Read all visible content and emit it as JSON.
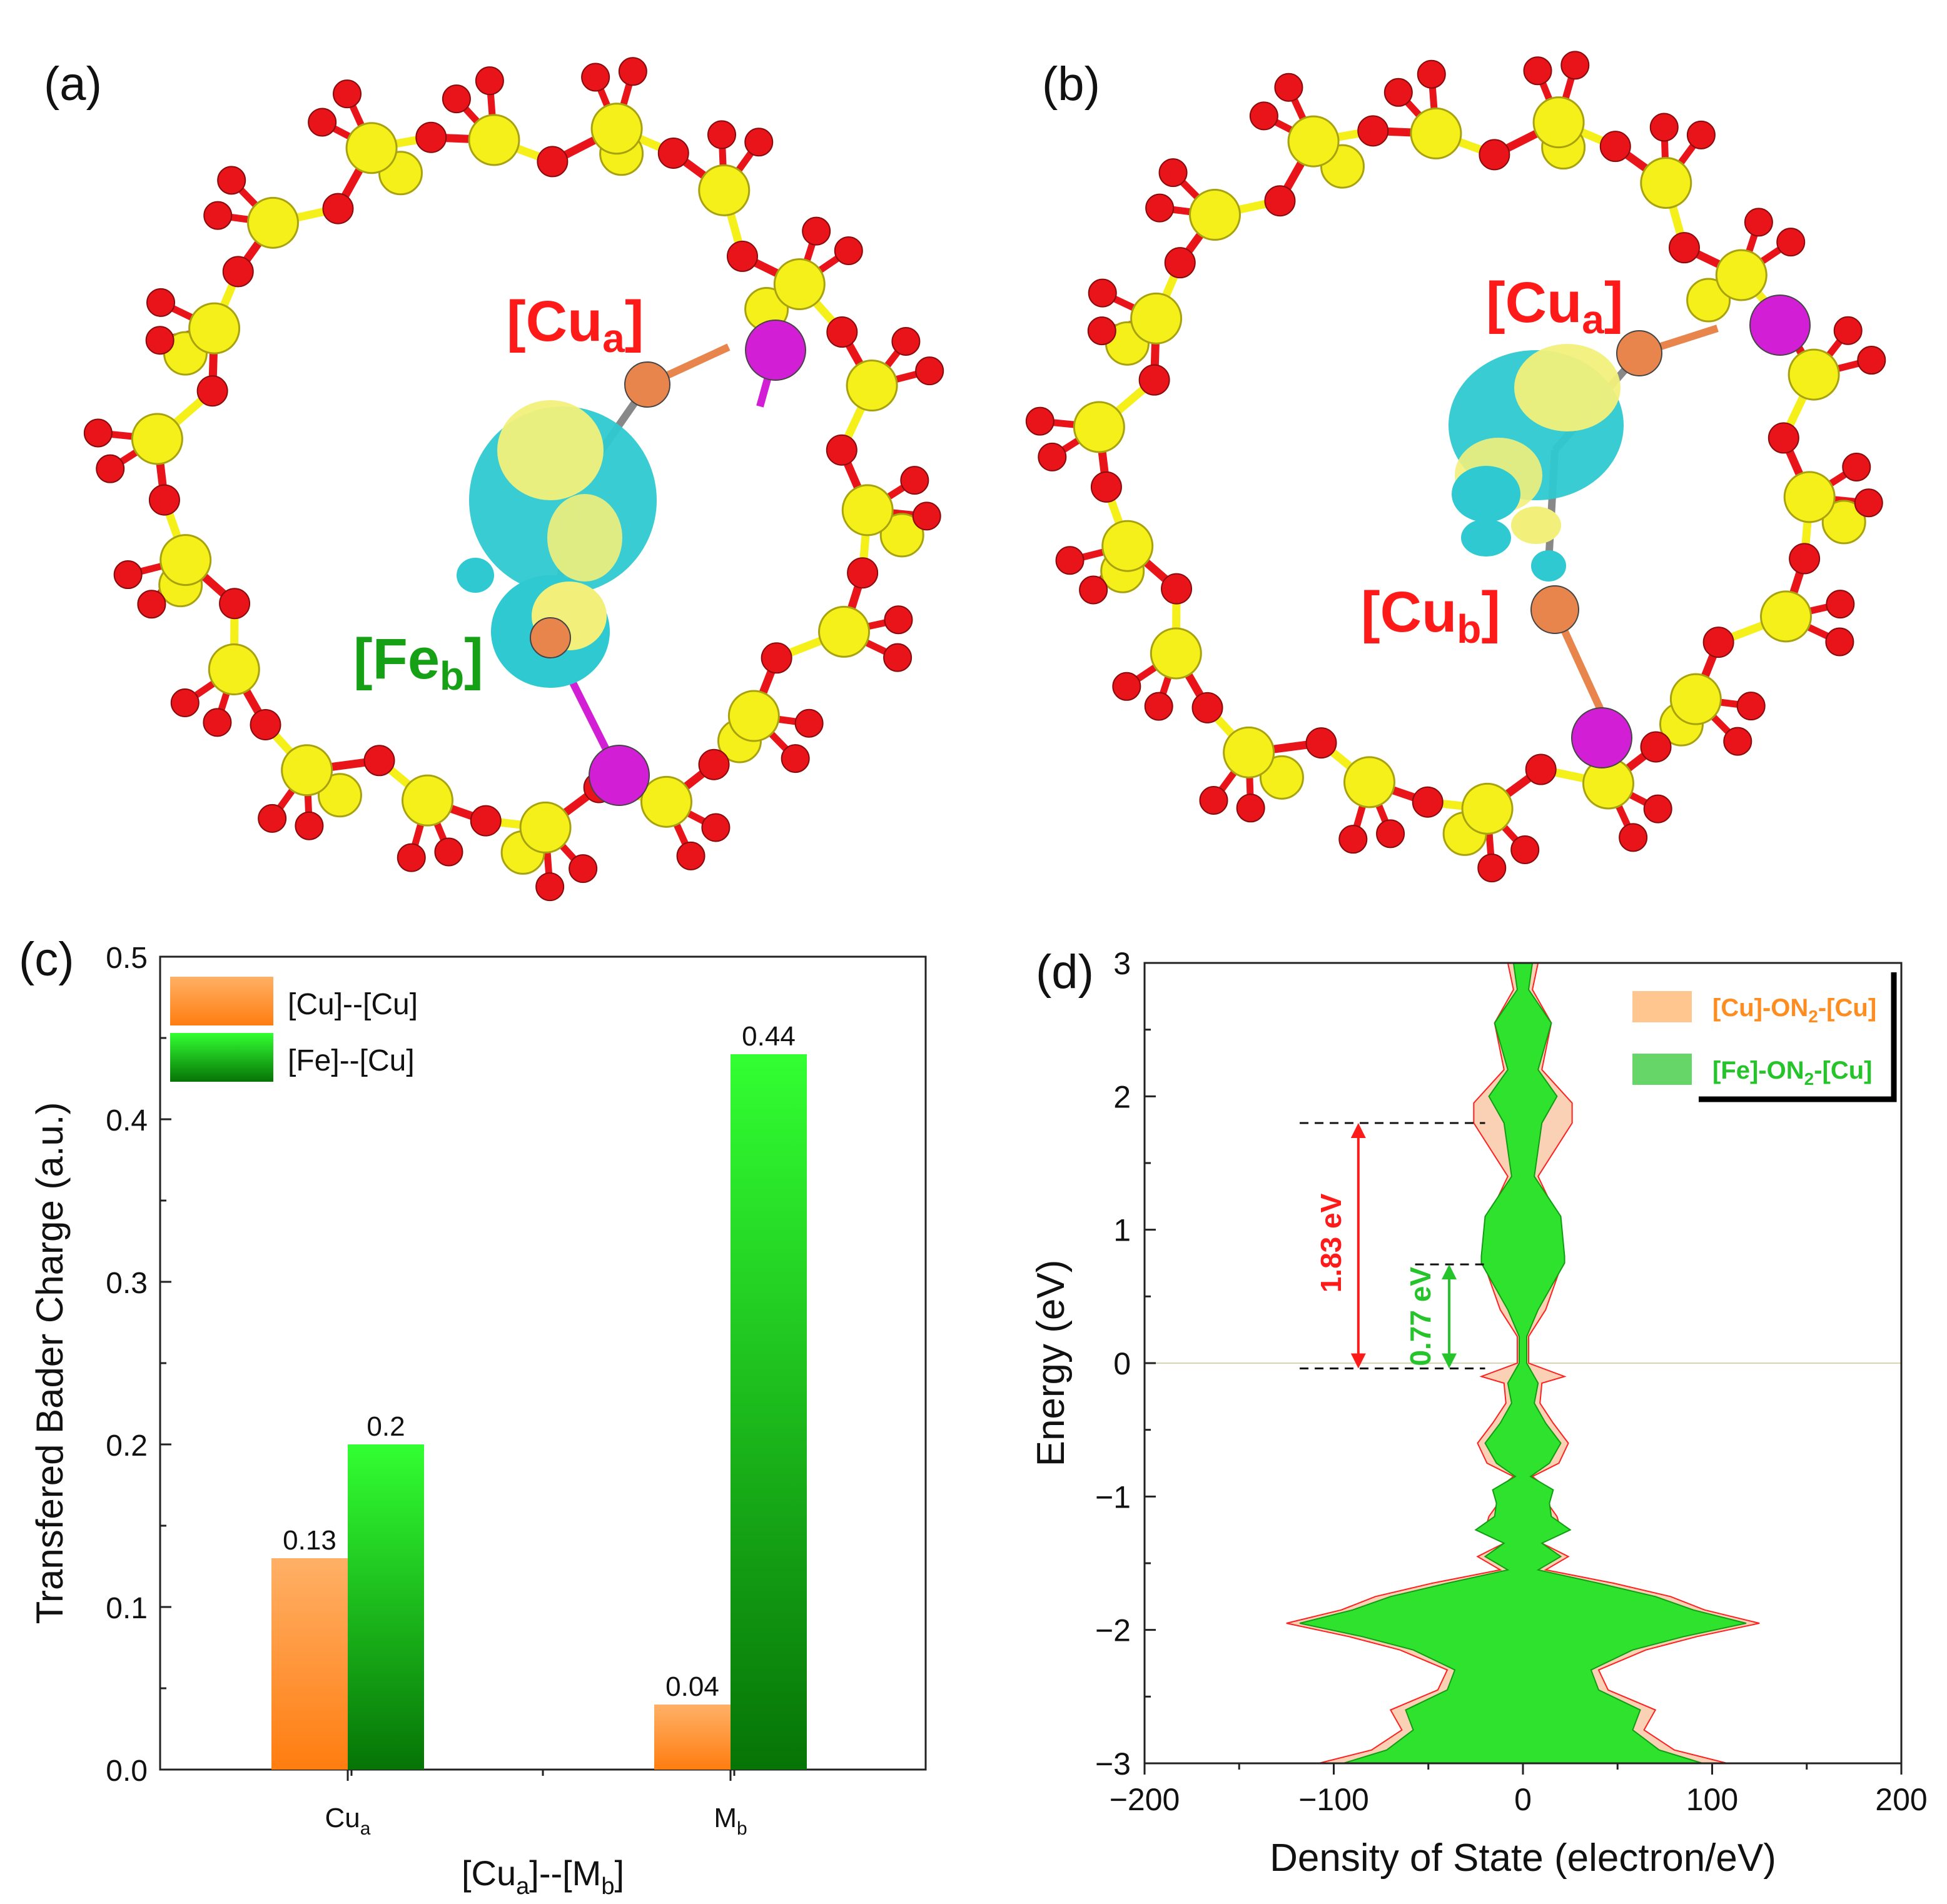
{
  "panels": {
    "a": {
      "letter": "(a)",
      "label_top": "[Cu",
      "label_top_sub": "a",
      "label_top_close": "]",
      "label_bottom": "[Fe",
      "label_bottom_sub": "b",
      "label_bottom_close": "]"
    },
    "b": {
      "letter": "(b)",
      "label_top": "[Cu",
      "label_top_sub": "a",
      "label_top_close": "]",
      "label_bottom": "[Cu",
      "label_bottom_sub": "b",
      "label_bottom_close": "]"
    }
  },
  "colors": {
    "oxygen": "#e8141a",
    "silicon": "#f5f01a",
    "copper": "#e8854d",
    "metal": "#d21fd6",
    "iso_cyan": "#2ec9d1",
    "iso_yellow": "#f2f07a",
    "orange": "#ff8c1f",
    "green": "#25c42a",
    "red_label": "#ff1a1a",
    "green_label": "#16a016"
  },
  "chart_data": [
    {
      "panel": "(c)",
      "type": "bar",
      "categories": [
        "Cu",
        "M"
      ],
      "category_subscripts": [
        "a",
        "b"
      ],
      "series": [
        {
          "name": "[Cu]--[Cu]",
          "values": [
            0.13,
            0.04
          ],
          "labels": [
            "0.13",
            "0.04"
          ]
        },
        {
          "name": "[Fe]--[Cu]",
          "values": [
            0.2,
            0.44
          ],
          "labels": [
            "0.2",
            "0.44"
          ]
        }
      ],
      "ylabel": "Transfered Bader Charge (a.u.)",
      "xlabel_main": "[Cu",
      "xlabel_sub1": "a",
      "xlabel_mid": "]--[M",
      "xlabel_sub2": "b",
      "xlabel_end": "]",
      "ylim": [
        0,
        0.5
      ],
      "yticks": [
        "0.0",
        "0.1",
        "0.2",
        "0.3",
        "0.4",
        "0.5"
      ]
    },
    {
      "panel": "(d)",
      "type": "area",
      "xlabel": "Density of State (electron/eV)",
      "ylabel": "Energy (eV)",
      "xlim": [
        -200,
        200
      ],
      "ylim": [
        -3,
        3
      ],
      "xticks": [
        "−200",
        "−100",
        "0",
        "100",
        "200"
      ],
      "yticks": [
        "−3",
        "−2",
        "−1",
        "0",
        "1",
        "2",
        "3"
      ],
      "legend": [
        {
          "pre": "[Cu]-ON",
          "sub": "2",
          "post": "-[Cu]"
        },
        {
          "pre": "[Fe]-ON",
          "sub": "2",
          "post": "-[Cu]"
        }
      ],
      "gap_red": {
        "label": "1.83 eV",
        "low": -0.04,
        "high": 1.8
      },
      "gap_green": {
        "label": "0.77 eV",
        "low": -0.04,
        "high": 0.74
      },
      "series": [
        {
          "name": "[Cu]-ON2-[Cu]",
          "points": [
            [
              -3,
              108
            ],
            [
              -2.9,
              80
            ],
            [
              -2.75,
              64
            ],
            [
              -2.6,
              70
            ],
            [
              -2.45,
              45
            ],
            [
              -2.3,
              40
            ],
            [
              -2.15,
              65
            ],
            [
              -2.05,
              92
            ],
            [
              -1.95,
              125
            ],
            [
              -1.85,
              96
            ],
            [
              -1.75,
              78
            ],
            [
              -1.65,
              48
            ],
            [
              -1.55,
              12
            ],
            [
              -1.45,
              24
            ],
            [
              -1.35,
              10
            ],
            [
              -1.25,
              20
            ],
            [
              -1.15,
              18
            ],
            [
              -1.05,
              13
            ],
            [
              -0.95,
              14
            ],
            [
              -0.85,
              5
            ],
            [
              -0.75,
              19
            ],
            [
              -0.6,
              24
            ],
            [
              -0.45,
              16
            ],
            [
              -0.3,
              9
            ],
            [
              -0.15,
              10
            ],
            [
              -0.1,
              22
            ],
            [
              0,
              3
            ],
            [
              0.2,
              3
            ],
            [
              0.4,
              12
            ],
            [
              0.8,
              22
            ],
            [
              1.1,
              18
            ],
            [
              1.4,
              8
            ],
            [
              1.8,
              26
            ],
            [
              1.95,
              26
            ],
            [
              2.2,
              10
            ],
            [
              2.55,
              15
            ],
            [
              2.8,
              5
            ],
            [
              3,
              8
            ]
          ]
        },
        {
          "name": "[Fe]-ON2-[Cu]",
          "points": [
            [
              -3,
              95
            ],
            [
              -2.9,
              72
            ],
            [
              -2.75,
              58
            ],
            [
              -2.6,
              62
            ],
            [
              -2.45,
              40
            ],
            [
              -2.3,
              36
            ],
            [
              -2.15,
              58
            ],
            [
              -2.05,
              85
            ],
            [
              -1.95,
              118
            ],
            [
              -1.85,
              90
            ],
            [
              -1.75,
              70
            ],
            [
              -1.65,
              40
            ],
            [
              -1.55,
              8
            ],
            [
              -1.45,
              20
            ],
            [
              -1.35,
              10
            ],
            [
              -1.25,
              25
            ],
            [
              -1.15,
              15
            ],
            [
              -1.05,
              14
            ],
            [
              -0.95,
              16
            ],
            [
              -0.85,
              4
            ],
            [
              -0.75,
              14
            ],
            [
              -0.6,
              20
            ],
            [
              -0.45,
              12
            ],
            [
              -0.3,
              6
            ],
            [
              -0.15,
              8
            ],
            [
              0,
              2
            ],
            [
              0.2,
              2
            ],
            [
              0.4,
              8
            ],
            [
              0.75,
              22
            ],
            [
              0.8,
              22
            ],
            [
              1.1,
              20
            ],
            [
              1.4,
              6
            ],
            [
              1.8,
              10
            ],
            [
              2,
              18
            ],
            [
              2.2,
              8
            ],
            [
              2.55,
              15
            ],
            [
              2.8,
              3
            ],
            [
              3,
              5
            ]
          ]
        }
      ]
    }
  ]
}
